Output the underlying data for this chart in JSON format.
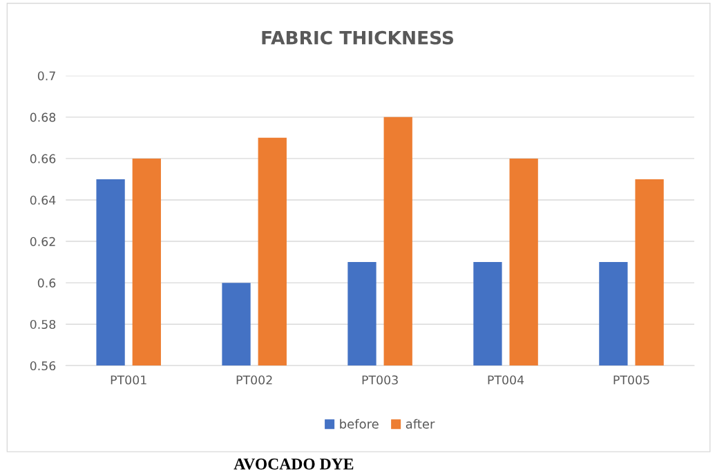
{
  "chart_data": {
    "type": "bar",
    "title": "FABRIC THICKNESS",
    "categories": [
      "PT001",
      "PT002",
      "PT003",
      "PT004",
      "PT005"
    ],
    "series": [
      {
        "name": "before",
        "color": "#4472c4",
        "values": [
          0.65,
          0.6,
          0.61,
          0.61,
          0.61
        ]
      },
      {
        "name": "after",
        "color": "#ed7d31",
        "values": [
          0.66,
          0.67,
          0.68,
          0.66,
          0.65
        ]
      }
    ],
    "ylim": [
      0.56,
      0.7
    ],
    "yticks": [
      0.56,
      0.58,
      0.6,
      0.62,
      0.64,
      0.66,
      0.68,
      0.7
    ],
    "grid": "y",
    "legend": "bottom",
    "annotations": [
      "AVOCADO DYE"
    ]
  }
}
